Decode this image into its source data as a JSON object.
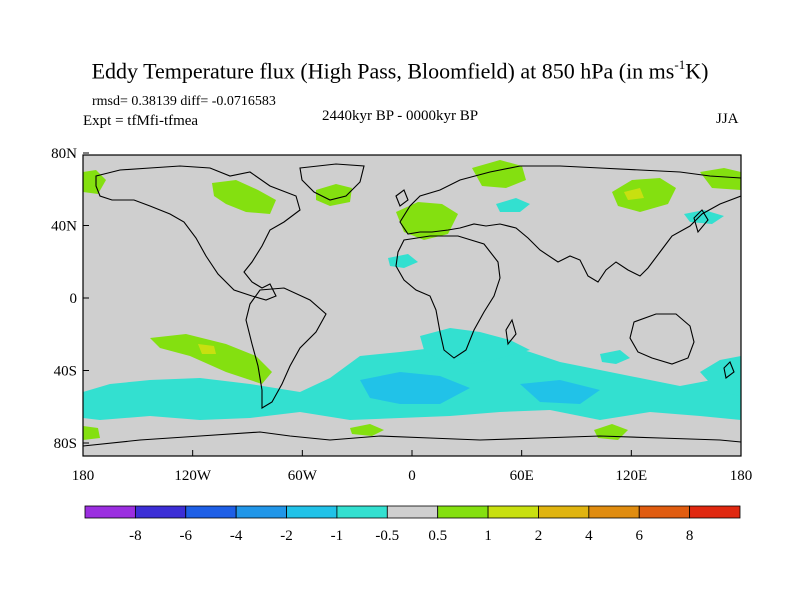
{
  "title": {
    "prefix": "Eddy Temperature flux (High Pass, Bloomfield) at 850 hPa (in ms",
    "superscript": "-1",
    "suffix": "K)"
  },
  "stats": "rmsd= 0.38139 diff= -0.0716583",
  "experiment": "Expt = tfMfi-tfmea",
  "period": "2440kyr BP - 0000kyr BP",
  "season": "JJA",
  "axes": {
    "x_ticks": [
      "180",
      "120W",
      "60W",
      "0",
      "60E",
      "120E",
      "180"
    ],
    "y_ticks": [
      "80N",
      "40N",
      "0",
      "40S",
      "80S"
    ]
  },
  "colorbar": {
    "colors": [
      "#9b2ee0",
      "#3c2ed6",
      "#1e5fe6",
      "#2196e8",
      "#21c2e8",
      "#33e0d0",
      "#cfcfcf",
      "#84e010",
      "#c8e010",
      "#e0b410",
      "#e08c10",
      "#e05c10",
      "#e02810"
    ],
    "labels": [
      "-8",
      "-6",
      "-4",
      "-2",
      "-1",
      "-0.5",
      "0.5",
      "1",
      "2",
      "4",
      "6",
      "8"
    ]
  },
  "map": {
    "background_color": "#cfcfcf",
    "positive_color": "#84e010",
    "strong_positive_color": "#c8e010",
    "negative_color": "#33e0d0",
    "strong_negative_color": "#21c2e8"
  }
}
